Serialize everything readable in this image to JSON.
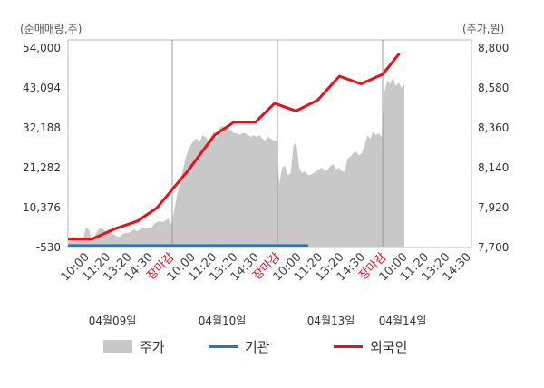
{
  "chart_data": {
    "type": "line",
    "left_axis": {
      "unit_label": "(순매매량,주)",
      "ticks": [
        "54,000",
        "43,094",
        "32,188",
        "21,282",
        "10,376",
        "-530"
      ],
      "min": -530,
      "max": 54000
    },
    "right_axis": {
      "unit_label": "(주가,원)",
      "ticks": [
        "8,800",
        "8,580",
        "8,360",
        "8,140",
        "7,920",
        "7,700"
      ],
      "min": 7700,
      "max": 8800
    },
    "x_tick_labels": [
      "10:00",
      "11:20",
      "13:20",
      "14:30",
      "장마감",
      "10:00",
      "11:20",
      "13:20",
      "14:30",
      "장마감",
      "10:00",
      "11:20",
      "13:20",
      "14:30",
      "장마감",
      "10:00",
      "11:20",
      "13:20",
      "14:30"
    ],
    "dates": [
      "04월09일",
      "04월10일",
      "04월13일",
      "04월14일"
    ],
    "series": [
      {
        "name": "주가",
        "kind": "area",
        "axis": "right",
        "color": "#c8c8c8",
        "values": [
          [
            0,
            7730
          ],
          [
            1,
            7760
          ],
          [
            2,
            7760
          ],
          [
            3,
            7735
          ],
          [
            4,
            7740
          ],
          [
            5,
            7745
          ],
          [
            6,
            7810
          ],
          [
            7,
            7800
          ],
          [
            8,
            7740
          ],
          [
            9,
            7760
          ],
          [
            10,
            7790
          ],
          [
            11,
            7810
          ],
          [
            12,
            7800
          ],
          [
            13,
            7790
          ],
          [
            14,
            7800
          ],
          [
            15,
            7780
          ],
          [
            16,
            7770
          ],
          [
            17,
            7760
          ],
          [
            18,
            7760
          ],
          [
            19,
            7775
          ],
          [
            20,
            7780
          ],
          [
            21,
            7780
          ],
          [
            22,
            7790
          ],
          [
            23,
            7800
          ],
          [
            24,
            7790
          ],
          [
            25,
            7800
          ],
          [
            26,
            7810
          ],
          [
            27,
            7805
          ],
          [
            28,
            7810
          ],
          [
            29,
            7810
          ],
          [
            30,
            7830
          ],
          [
            31,
            7840
          ],
          [
            32,
            7845
          ],
          [
            33,
            7840
          ],
          [
            34,
            7850
          ],
          [
            35,
            7860
          ],
          [
            36,
            7830
          ],
          [
            37,
            7900
          ],
          [
            38,
            7990
          ],
          [
            39,
            8050
          ],
          [
            40,
            8120
          ],
          [
            41,
            8190
          ],
          [
            42,
            8240
          ],
          [
            43,
            8270
          ],
          [
            44,
            8290
          ],
          [
            45,
            8300
          ],
          [
            46,
            8280
          ],
          [
            47,
            8320
          ],
          [
            48,
            8310
          ],
          [
            49,
            8290
          ],
          [
            50,
            8300
          ],
          [
            51,
            8340
          ],
          [
            52,
            8300
          ],
          [
            53,
            8360
          ],
          [
            54,
            8370
          ],
          [
            55,
            8360
          ],
          [
            56,
            8355
          ],
          [
            57,
            8350
          ],
          [
            58,
            8330
          ],
          [
            59,
            8330
          ],
          [
            60,
            8320
          ],
          [
            61,
            8330
          ],
          [
            62,
            8330
          ],
          [
            63,
            8320
          ],
          [
            64,
            8310
          ],
          [
            65,
            8320
          ],
          [
            66,
            8310
          ],
          [
            67,
            8320
          ],
          [
            68,
            8300
          ],
          [
            69,
            8290
          ],
          [
            70,
            8310
          ],
          [
            71,
            8300
          ],
          [
            72,
            8290
          ],
          [
            73,
            8290
          ],
          [
            74,
            8050
          ],
          [
            75,
            8140
          ],
          [
            76,
            8150
          ],
          [
            77,
            8100
          ],
          [
            78,
            8110
          ],
          [
            79,
            8260
          ],
          [
            80,
            8280
          ],
          [
            81,
            8140
          ],
          [
            82,
            8110
          ],
          [
            83,
            8120
          ],
          [
            84,
            8100
          ],
          [
            85,
            8100
          ],
          [
            86,
            8110
          ],
          [
            87,
            8120
          ],
          [
            88,
            8130
          ],
          [
            89,
            8140
          ],
          [
            90,
            8120
          ],
          [
            91,
            8130
          ],
          [
            92,
            8150
          ],
          [
            93,
            8160
          ],
          [
            94,
            8130
          ],
          [
            95,
            8140
          ],
          [
            96,
            8120
          ],
          [
            97,
            8120
          ],
          [
            98,
            8190
          ],
          [
            99,
            8200
          ],
          [
            100,
            8220
          ],
          [
            101,
            8230
          ],
          [
            102,
            8210
          ],
          [
            103,
            8220
          ],
          [
            104,
            8260
          ],
          [
            105,
            8320
          ],
          [
            106,
            8300
          ],
          [
            107,
            8340
          ],
          [
            108,
            8320
          ],
          [
            109,
            8330
          ],
          [
            110,
            8310
          ],
          [
            111,
            8560
          ],
          [
            112,
            8620
          ],
          [
            113,
            8600
          ],
          [
            114,
            8640
          ],
          [
            115,
            8590
          ],
          [
            116,
            8610
          ],
          [
            117,
            8580
          ],
          [
            118,
            8600
          ]
        ]
      },
      {
        "name": "기관",
        "kind": "line",
        "axis": "left",
        "color": "#1f78c8",
        "values": [
          [
            0,
            0
          ],
          [
            1,
            0
          ],
          [
            2,
            0
          ],
          [
            3,
            0
          ],
          [
            4,
            0
          ],
          [
            5,
            0
          ]
        ]
      },
      {
        "name": "외국인",
        "kind": "line",
        "axis": "left",
        "color": "#e8101c",
        "values": [
          [
            0,
            1800
          ],
          [
            0.5,
            1800
          ],
          [
            1,
            4700
          ],
          [
            1.45,
            6700
          ],
          [
            1.85,
            10300
          ],
          [
            2.5,
            20500
          ],
          [
            3.05,
            30200
          ],
          [
            3.45,
            33700
          ],
          [
            3.9,
            33700
          ],
          [
            4.3,
            38900
          ],
          [
            4.75,
            36800
          ],
          [
            5.2,
            39800
          ],
          [
            5.65,
            46300
          ],
          [
            6.1,
            44200
          ],
          [
            6.55,
            46800
          ],
          [
            6.9,
            52500
          ]
        ]
      }
    ],
    "x_range": [
      0,
      8.4
    ],
    "legend_position": "bottom",
    "grid": false
  }
}
